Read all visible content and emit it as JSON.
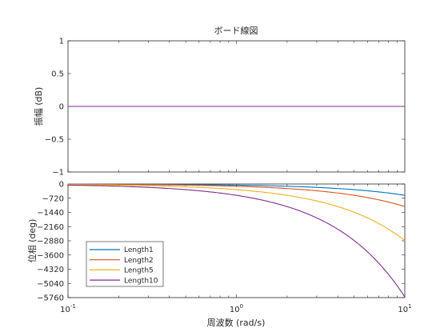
{
  "chart_data": {
    "type": "line",
    "title": "ボード線図",
    "xlabel": "周波数 (rad/s)",
    "x_scale": "log",
    "xlim": [
      0.1,
      10
    ],
    "x_ticks": [
      {
        "value": 0.1,
        "base": "10",
        "exp": "-1"
      },
      {
        "value": 1,
        "base": "10",
        "exp": "0"
      },
      {
        "value": 10,
        "base": "10",
        "exp": "1"
      }
    ],
    "legend_position": "bottom-left",
    "magnitude": {
      "ylabel": "振幅 (dB)",
      "ylim": [
        -1,
        1
      ],
      "y_ticks": [
        1,
        0.5,
        0,
        -0.5,
        -1
      ],
      "y_tick_labels": [
        "1",
        "0.5",
        "0",
        "−0.5",
        "−1"
      ],
      "series_db": 0
    },
    "phase": {
      "ylabel": "位相 (deg)",
      "ylim": [
        -5760,
        0
      ],
      "y_ticks": [
        0,
        -720,
        -1440,
        -2160,
        -2880,
        -3600,
        -4320,
        -5040,
        -5760
      ],
      "y_tick_labels": [
        "0",
        "−720",
        "−1440",
        "−2160",
        "−2880",
        "−3600",
        "−4320",
        "−5040",
        "−5760"
      ]
    },
    "series": [
      {
        "name": "Length1",
        "color": "#0072BD",
        "delay": 1
      },
      {
        "name": "Length2",
        "color": "#D95319",
        "delay": 2
      },
      {
        "name": "Length5",
        "color": "#EDB120",
        "delay": 5
      },
      {
        "name": "Length10",
        "color": "#7E2F8E",
        "delay": 10
      }
    ]
  }
}
